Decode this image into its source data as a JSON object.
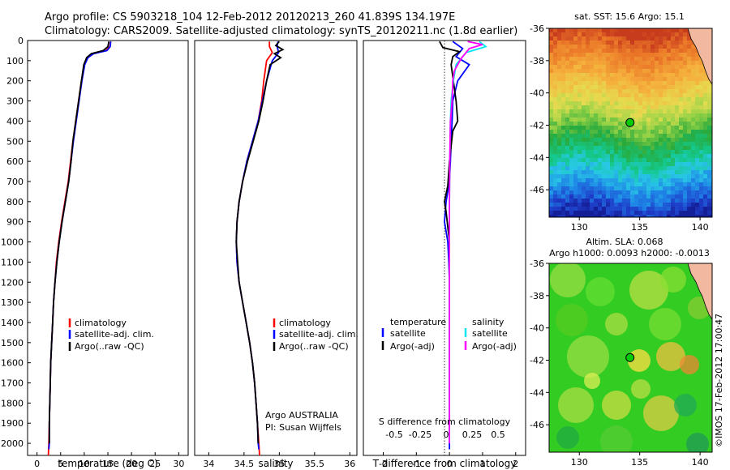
{
  "header": {
    "line1": "Argo profile: CS 5903218_104 12-Feb-2012 20120213_260 41.839S 134.197E",
    "line2": "Climatology: CARS2009. Satellite-adjusted climatology: synTS_20120211.nc (1.8d earlier)"
  },
  "credit": "©IMOS 17-Feb-2012 17:00:47",
  "colors": {
    "climatology": "#ff0000",
    "satellite": "#0000ff",
    "argo": "#000000",
    "salinity_satellite": "#00e5ee",
    "salinity_argo": "#ff00ff",
    "land": "#f2b9a0"
  },
  "depth_axis": {
    "ylim": [
      2060,
      0
    ],
    "ticks": [
      0,
      100,
      200,
      300,
      400,
      500,
      600,
      700,
      800,
      900,
      1000,
      1100,
      1200,
      1300,
      1400,
      1500,
      1600,
      1700,
      1800,
      1900,
      2000
    ]
  },
  "chart_data": [
    {
      "type": "line",
      "id": "temperature",
      "xlabel": "temperature (deg C)",
      "ylabel": "",
      "xlim": [
        -2,
        32
      ],
      "xticks": [
        0,
        5,
        10,
        15,
        20,
        25,
        30
      ],
      "legend": {
        "placement": "bottom-left",
        "items": [
          {
            "label": "climatology",
            "color": "#ff0000"
          },
          {
            "label": "satellite-adj. clim.",
            "color": "#0000ff"
          },
          {
            "label": "Argo(..raw -QC)",
            "color": "#000000"
          }
        ]
      },
      "series": [
        {
          "name": "climatology",
          "color": "#ff0000",
          "points": [
            [
              15.6,
              5
            ],
            [
              15.4,
              30
            ],
            [
              14.6,
              50
            ],
            [
              11.8,
              65
            ],
            [
              10.6,
              85
            ],
            [
              10.0,
              120
            ],
            [
              9.4,
              200
            ],
            [
              8.8,
              300
            ],
            [
              8.2,
              400
            ],
            [
              7.6,
              500
            ],
            [
              7.1,
              600
            ],
            [
              6.6,
              700
            ],
            [
              5.9,
              800
            ],
            [
              5.2,
              900
            ],
            [
              4.6,
              1000
            ],
            [
              4.1,
              1100
            ],
            [
              3.8,
              1200
            ],
            [
              3.5,
              1300
            ],
            [
              3.3,
              1400
            ],
            [
              3.1,
              1500
            ],
            [
              2.9,
              1600
            ],
            [
              2.8,
              1700
            ],
            [
              2.7,
              1800
            ],
            [
              2.6,
              1900
            ],
            [
              2.5,
              2000
            ],
            [
              2.4,
              2060
            ]
          ]
        },
        {
          "name": "satellite-adj. clim.",
          "color": "#0000ff",
          "points": [
            [
              15.6,
              5
            ],
            [
              15.5,
              30
            ],
            [
              14.8,
              50
            ],
            [
              12.0,
              65
            ],
            [
              10.8,
              85
            ],
            [
              10.1,
              120
            ],
            [
              9.5,
              200
            ],
            [
              8.9,
              300
            ],
            [
              8.3,
              400
            ],
            [
              7.7,
              500
            ],
            [
              7.2,
              600
            ],
            [
              6.7,
              700
            ],
            [
              6.0,
              800
            ],
            [
              5.3,
              900
            ],
            [
              4.7,
              1000
            ],
            [
              4.2,
              1100
            ],
            [
              3.8,
              1200
            ],
            [
              3.5,
              1300
            ],
            [
              3.3,
              1400
            ],
            [
              3.1,
              1500
            ],
            [
              2.9,
              1600
            ],
            [
              2.8,
              1700
            ],
            [
              2.7,
              1800
            ],
            [
              2.6,
              1900
            ],
            [
              2.6,
              2000
            ],
            [
              2.5,
              2030
            ]
          ]
        },
        {
          "name": "Argo",
          "color": "#000000",
          "points": [
            [
              15.2,
              5
            ],
            [
              15.0,
              30
            ],
            [
              14.0,
              50
            ],
            [
              11.5,
              65
            ],
            [
              10.5,
              85
            ],
            [
              9.9,
              120
            ],
            [
              9.4,
              200
            ],
            [
              8.8,
              300
            ],
            [
              8.2,
              400
            ],
            [
              7.6,
              500
            ],
            [
              7.2,
              600
            ],
            [
              6.7,
              700
            ],
            [
              6.0,
              800
            ],
            [
              5.3,
              900
            ],
            [
              4.7,
              1000
            ],
            [
              4.2,
              1100
            ],
            [
              3.8,
              1200
            ],
            [
              3.5,
              1300
            ],
            [
              3.3,
              1400
            ],
            [
              3.1,
              1500
            ],
            [
              2.9,
              1600
            ],
            [
              2.8,
              1700
            ],
            [
              2.7,
              1800
            ],
            [
              2.6,
              1900
            ],
            [
              2.6,
              2000
            ]
          ]
        }
      ]
    },
    {
      "type": "line",
      "id": "salinity",
      "xlabel": "salinity",
      "ylabel": "",
      "xlim": [
        33.8,
        36.1
      ],
      "xticks": [
        34,
        34.5,
        35,
        35.5,
        36
      ],
      "legend": {
        "placement": "bottom-right",
        "items": [
          {
            "label": "climatology",
            "color": "#ff0000"
          },
          {
            "label": "satellite-adj. clim.",
            "color": "#0000ff"
          },
          {
            "label": "Argo(..raw -QC)",
            "color": "#000000"
          }
        ]
      },
      "annotations": [
        "Argo AUSTRALIA",
        "PI: Susan Wijffels"
      ],
      "series": [
        {
          "name": "climatology",
          "color": "#ff0000",
          "points": [
            [
              34.86,
              5
            ],
            [
              34.86,
              30
            ],
            [
              34.9,
              60
            ],
            [
              34.82,
              100
            ],
            [
              34.78,
              200
            ],
            [
              34.75,
              300
            ],
            [
              34.7,
              400
            ],
            [
              34.62,
              500
            ],
            [
              34.54,
              600
            ],
            [
              34.48,
              700
            ],
            [
              34.43,
              800
            ],
            [
              34.4,
              900
            ],
            [
              34.39,
              1000
            ],
            [
              34.4,
              1100
            ],
            [
              34.43,
              1200
            ],
            [
              34.48,
              1300
            ],
            [
              34.53,
              1400
            ],
            [
              34.58,
              1500
            ],
            [
              34.62,
              1600
            ],
            [
              34.65,
              1700
            ],
            [
              34.67,
              1800
            ],
            [
              34.69,
              1900
            ],
            [
              34.71,
              2000
            ],
            [
              34.72,
              2060
            ]
          ]
        },
        {
          "name": "satellite-adj. clim.",
          "color": "#0000ff",
          "points": [
            [
              34.98,
              5
            ],
            [
              34.97,
              30
            ],
            [
              34.99,
              60
            ],
            [
              34.9,
              100
            ],
            [
              34.82,
              200
            ],
            [
              34.76,
              300
            ],
            [
              34.7,
              400
            ],
            [
              34.62,
              500
            ],
            [
              34.54,
              600
            ],
            [
              34.48,
              700
            ],
            [
              34.43,
              800
            ],
            [
              34.4,
              900
            ],
            [
              34.39,
              1000
            ],
            [
              34.4,
              1100
            ],
            [
              34.43,
              1200
            ],
            [
              34.48,
              1300
            ],
            [
              34.53,
              1400
            ],
            [
              34.58,
              1500
            ],
            [
              34.62,
              1600
            ],
            [
              34.65,
              1700
            ],
            [
              34.67,
              1800
            ],
            [
              34.69,
              1900
            ],
            [
              34.7,
              2000
            ],
            [
              34.71,
              2030
            ]
          ]
        },
        {
          "name": "Argo",
          "color": "#000000",
          "points": [
            [
              35.0,
              5
            ],
            [
              34.95,
              25
            ],
            [
              35.05,
              45
            ],
            [
              34.93,
              65
            ],
            [
              35.02,
              85
            ],
            [
              34.87,
              120
            ],
            [
              34.82,
              200
            ],
            [
              34.77,
              300
            ],
            [
              34.71,
              400
            ],
            [
              34.63,
              500
            ],
            [
              34.55,
              600
            ],
            [
              34.48,
              700
            ],
            [
              34.43,
              800
            ],
            [
              34.4,
              900
            ],
            [
              34.39,
              1000
            ],
            [
              34.41,
              1100
            ],
            [
              34.43,
              1200
            ],
            [
              34.48,
              1300
            ],
            [
              34.53,
              1400
            ],
            [
              34.58,
              1500
            ],
            [
              34.62,
              1600
            ],
            [
              34.65,
              1700
            ],
            [
              34.67,
              1800
            ],
            [
              34.69,
              1900
            ],
            [
              34.7,
              2000
            ]
          ]
        }
      ]
    },
    {
      "type": "line",
      "id": "difference",
      "xlabel": "T difference from climatology",
      "ylabel": "",
      "title_bottom": "S difference from climatology",
      "xlim": [
        -2.6,
        2.3
      ],
      "xticks": [
        -2,
        -1,
        0,
        1,
        2
      ],
      "s_xticks": [
        "-0.5",
        "-0.25",
        "0",
        "0.25",
        "0.5"
      ],
      "legend": {
        "placement": "bottom",
        "temperature_header": "temperature",
        "salinity_header": "salinity",
        "items": [
          {
            "group": "temperature",
            "label": "satellite",
            "color": "#0000ff"
          },
          {
            "group": "temperature",
            "label": "Argo(-adj)",
            "color": "#000000"
          },
          {
            "group": "salinity",
            "label": "satellite",
            "color": "#00e5ee"
          },
          {
            "group": "salinity",
            "label": "Argo(-adj)",
            "color": "#ff00ff"
          }
        ]
      },
      "series": [
        {
          "name": "T satellite",
          "color": "#0000ff",
          "points": [
            [
              0.1,
              5
            ],
            [
              0.4,
              40
            ],
            [
              0.2,
              80
            ],
            [
              0.6,
              120
            ],
            [
              0.25,
              200
            ],
            [
              0.1,
              300
            ],
            [
              0.08,
              400
            ],
            [
              0.05,
              500
            ],
            [
              0.03,
              600
            ],
            [
              0.0,
              700
            ],
            [
              -0.1,
              800
            ],
            [
              -0.15,
              900
            ],
            [
              -0.05,
              1000
            ],
            [
              -0.02,
              1100
            ],
            [
              0.0,
              1200
            ],
            [
              0.0,
              1400
            ],
            [
              0.0,
              1600
            ],
            [
              0.0,
              1800
            ],
            [
              0.0,
              2000
            ],
            [
              0.0,
              2030
            ]
          ]
        },
        {
          "name": "T Argo",
          "color": "#000000",
          "points": [
            [
              -0.3,
              5
            ],
            [
              -0.2,
              35
            ],
            [
              0.3,
              55
            ],
            [
              0.1,
              80
            ],
            [
              0.05,
              120
            ],
            [
              0.2,
              300
            ],
            [
              0.25,
              400
            ],
            [
              0.1,
              450
            ],
            [
              0.0,
              600
            ],
            [
              -0.05,
              720
            ],
            [
              -0.15,
              800
            ],
            [
              -0.1,
              850
            ],
            [
              0.0,
              1000
            ],
            [
              0.0,
              1200
            ],
            [
              0.0,
              1500
            ],
            [
              0.0,
              2000
            ]
          ]
        },
        {
          "name": "S satellite",
          "color": "#00e5ee",
          "points": [
            [
              0.9,
              5
            ],
            [
              1.1,
              30
            ],
            [
              0.5,
              60
            ],
            [
              0.2,
              120
            ],
            [
              0.12,
              200
            ],
            [
              0.05,
              300
            ],
            [
              0.03,
              400
            ],
            [
              0.01,
              600
            ],
            [
              0.0,
              800
            ],
            [
              0.0,
              1200
            ],
            [
              0.0,
              1600
            ],
            [
              0.0,
              2000
            ]
          ]
        },
        {
          "name": "S Argo",
          "color": "#ff00ff",
          "points": [
            [
              0.55,
              5
            ],
            [
              1.0,
              20
            ],
            [
              0.6,
              40
            ],
            [
              0.35,
              90
            ],
            [
              0.15,
              150
            ],
            [
              0.1,
              200
            ],
            [
              0.08,
              300
            ],
            [
              0.03,
              400
            ],
            [
              0.01,
              600
            ],
            [
              0.0,
              800
            ],
            [
              0.0,
              2000
            ]
          ]
        }
      ]
    },
    {
      "type": "heatmap",
      "id": "sst_map",
      "title": "sat. SST: 15.6  Argo: 15.1",
      "xlim": [
        127.5,
        141
      ],
      "ylim": [
        -47.7,
        -36
      ],
      "xticks": [
        130,
        135,
        140
      ],
      "yticks": [
        -36,
        -38,
        -40,
        -42,
        -44,
        -46
      ],
      "marker": {
        "lon": 134.197,
        "lat": -41.839
      }
    },
    {
      "type": "heatmap",
      "id": "sla_map",
      "title": "Altim. SLA: 0.068",
      "subtitle": "Argo h1000: 0.0093 h2000: -0.0013",
      "xlim": [
        127.5,
        141
      ],
      "ylim": [
        -47.7,
        -36
      ],
      "xticks": [
        130,
        135,
        140
      ],
      "yticks": [
        -36,
        -38,
        -40,
        -42,
        -44,
        -46
      ],
      "marker": {
        "lon": 134.197,
        "lat": -41.839
      }
    }
  ]
}
